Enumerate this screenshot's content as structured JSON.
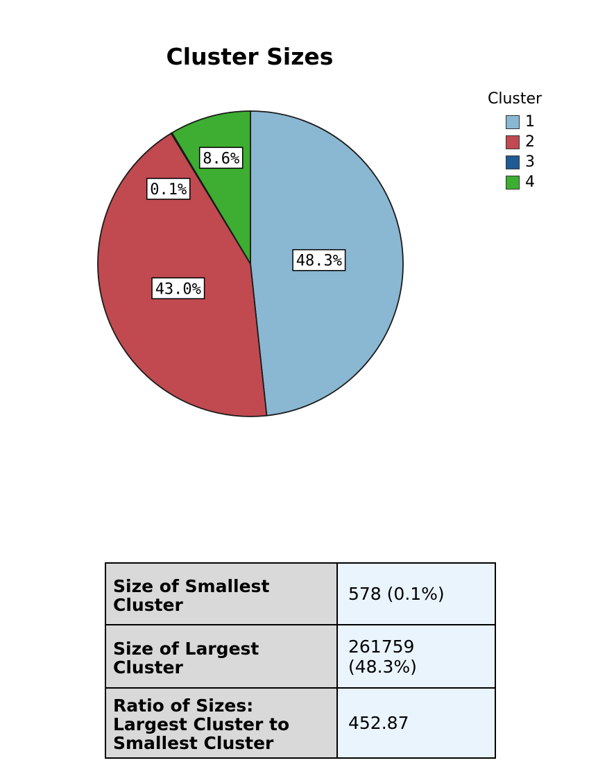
{
  "chart_data": {
    "type": "pie",
    "title": "Cluster Sizes",
    "legend_title": "Cluster",
    "legend_position": "top-right",
    "slices": [
      {
        "label": "1",
        "value": 48.3,
        "display": "48.3%",
        "color": "#8ab7d1"
      },
      {
        "label": "2",
        "value": 43.0,
        "display": "43.0%",
        "color": "#c04a50"
      },
      {
        "label": "3",
        "value": 0.1,
        "display": "0.1%",
        "color": "#1f5b94"
      },
      {
        "label": "4",
        "value": 8.6,
        "display": "8.6%",
        "color": "#3dae31"
      }
    ]
  },
  "table": {
    "rows": [
      {
        "label": "Size of Smallest Cluster",
        "value": "578 (0.1%)"
      },
      {
        "label": "Size of Largest Cluster",
        "value": "261759 (48.3%)"
      },
      {
        "label": "Ratio of Sizes: Largest Cluster to Smallest Cluster",
        "value": "452.87"
      }
    ]
  }
}
